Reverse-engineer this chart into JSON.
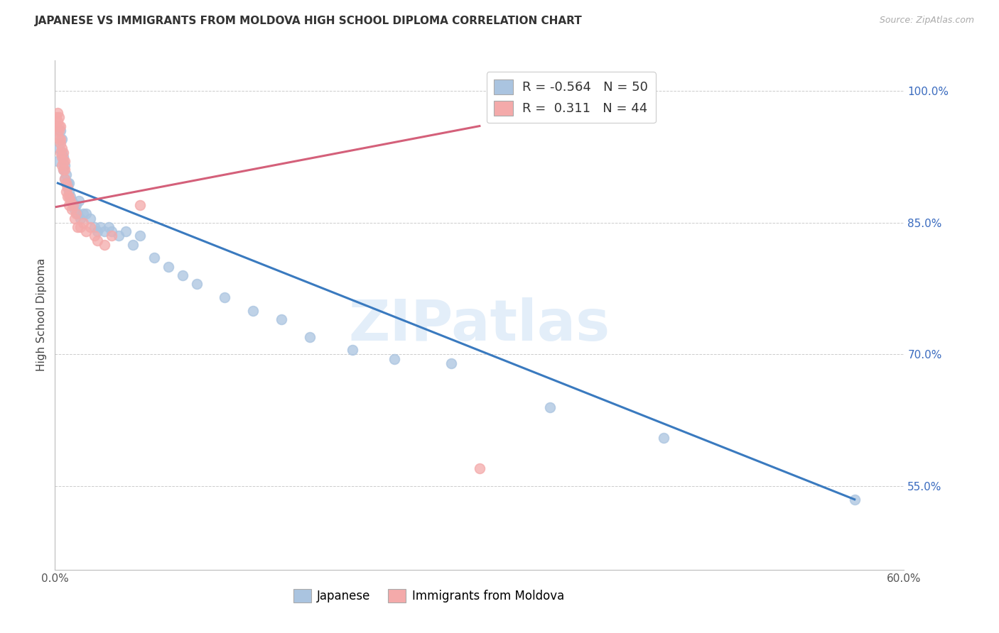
{
  "title": "JAPANESE VS IMMIGRANTS FROM MOLDOVA HIGH SCHOOL DIPLOMA CORRELATION CHART",
  "source": "Source: ZipAtlas.com",
  "ylabel_label": "High School Diploma",
  "legend_label1": "Japanese",
  "legend_label2": "Immigrants from Moldova",
  "R1": -0.564,
  "N1": 50,
  "R2": 0.311,
  "N2": 44,
  "color_blue": "#aac4e0",
  "color_pink": "#f4aaaa",
  "line_color_blue": "#3a7abf",
  "line_color_pink": "#d4607a",
  "watermark": "ZIPatlas",
  "xlim": [
    0.0,
    0.6
  ],
  "ylim": [
    0.455,
    1.035
  ],
  "xticks": [
    0.0,
    0.1,
    0.2,
    0.3,
    0.4,
    0.5,
    0.6
  ],
  "xtick_labels": [
    "0.0%",
    "",
    "",
    "",
    "",
    "",
    "60.0%"
  ],
  "yticks": [
    0.55,
    0.7,
    0.85,
    1.0
  ],
  "ytick_labels": [
    "55.0%",
    "70.0%",
    "85.0%",
    "100.0%"
  ],
  "japanese_x": [
    0.002,
    0.003,
    0.004,
    0.005,
    0.005,
    0.006,
    0.006,
    0.007,
    0.007,
    0.008,
    0.008,
    0.009,
    0.009,
    0.01,
    0.01,
    0.011,
    0.012,
    0.013,
    0.014,
    0.015,
    0.016,
    0.017,
    0.018,
    0.02,
    0.022,
    0.025,
    0.028,
    0.03,
    0.032,
    0.035,
    0.038,
    0.04,
    0.045,
    0.05,
    0.055,
    0.06,
    0.07,
    0.08,
    0.09,
    0.1,
    0.12,
    0.14,
    0.16,
    0.18,
    0.21,
    0.24,
    0.28,
    0.35,
    0.43,
    0.565
  ],
  "japanese_y": [
    0.92,
    0.935,
    0.955,
    0.93,
    0.945,
    0.91,
    0.925,
    0.9,
    0.915,
    0.895,
    0.905,
    0.89,
    0.895,
    0.885,
    0.895,
    0.88,
    0.875,
    0.87,
    0.865,
    0.87,
    0.86,
    0.875,
    0.855,
    0.86,
    0.86,
    0.855,
    0.845,
    0.84,
    0.845,
    0.84,
    0.845,
    0.84,
    0.835,
    0.84,
    0.825,
    0.835,
    0.81,
    0.8,
    0.79,
    0.78,
    0.765,
    0.75,
    0.74,
    0.72,
    0.705,
    0.695,
    0.69,
    0.64,
    0.605,
    0.535
  ],
  "moldova_x": [
    0.001,
    0.001,
    0.002,
    0.002,
    0.002,
    0.003,
    0.003,
    0.003,
    0.003,
    0.004,
    0.004,
    0.004,
    0.004,
    0.005,
    0.005,
    0.005,
    0.006,
    0.006,
    0.006,
    0.007,
    0.007,
    0.007,
    0.008,
    0.008,
    0.009,
    0.009,
    0.01,
    0.01,
    0.011,
    0.012,
    0.013,
    0.014,
    0.015,
    0.016,
    0.018,
    0.02,
    0.022,
    0.025,
    0.028,
    0.03,
    0.035,
    0.04,
    0.06,
    0.3
  ],
  "moldova_y": [
    0.96,
    0.97,
    0.955,
    0.965,
    0.975,
    0.945,
    0.955,
    0.96,
    0.97,
    0.93,
    0.94,
    0.945,
    0.96,
    0.915,
    0.925,
    0.935,
    0.91,
    0.92,
    0.93,
    0.9,
    0.91,
    0.92,
    0.885,
    0.895,
    0.88,
    0.89,
    0.87,
    0.88,
    0.875,
    0.865,
    0.87,
    0.855,
    0.86,
    0.845,
    0.845,
    0.85,
    0.84,
    0.845,
    0.835,
    0.83,
    0.825,
    0.835,
    0.87,
    0.57
  ],
  "blue_line_x": [
    0.002,
    0.565
  ],
  "blue_line_y": [
    0.895,
    0.535
  ],
  "pink_line_x": [
    0.001,
    0.3
  ],
  "pink_line_y": [
    0.868,
    0.96
  ]
}
